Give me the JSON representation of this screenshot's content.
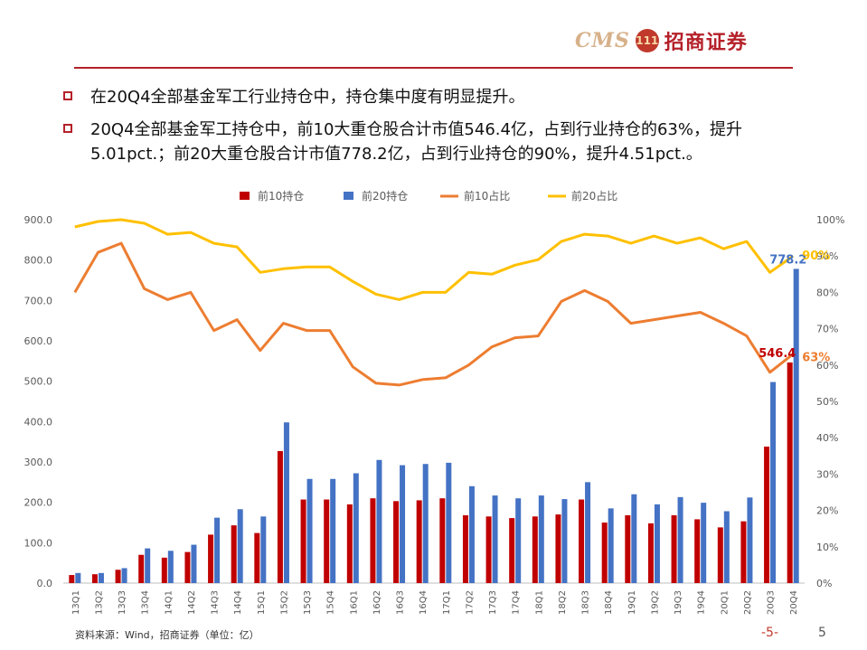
{
  "header": {
    "logo_text": "CMS",
    "logo_emblem": "111",
    "logo_company": "招商证券"
  },
  "bullets": [
    "在20Q4全部基金军工行业持仓中，持仓集中度有明显提升。",
    "20Q4全部基金军工持仓中，前10大重仓股合计市值546.4亿，占到行业持仓的63%，提升5.01pct.；前20大重仓股合计市值778.2亿，占到行业持仓的90%，提升4.51pct.。"
  ],
  "footer": {
    "source": "资料来源：Wind，招商证券（单位：亿）",
    "page_label": "-5-",
    "page_number": "5"
  },
  "colors": {
    "brand": "#b5212a",
    "top10_bar": "#c00000",
    "top20_bar": "#4472c4",
    "top10_line": "#ed7d31",
    "top20_line": "#ffc000"
  },
  "chart_data": {
    "type": "bar",
    "categories": [
      "13Q1",
      "13Q2",
      "13Q3",
      "13Q4",
      "14Q1",
      "14Q2",
      "14Q3",
      "14Q4",
      "15Q1",
      "15Q2",
      "15Q3",
      "15Q4",
      "16Q1",
      "16Q2",
      "16Q3",
      "16Q4",
      "17Q1",
      "17Q2",
      "17Q3",
      "17Q4",
      "18Q1",
      "18Q2",
      "18Q3",
      "18Q4",
      "19Q1",
      "19Q2",
      "19Q3",
      "19Q4",
      "20Q1",
      "20Q2",
      "20Q3",
      "20Q4"
    ],
    "series": [
      {
        "name": "前10持仓",
        "type": "bar",
        "axis": "left",
        "color": "#c00000",
        "values": [
          20,
          22,
          33,
          70,
          63,
          77,
          120,
          143,
          124,
          327,
          207,
          207,
          195,
          210,
          203,
          205,
          210,
          168,
          165,
          161,
          165,
          170,
          207,
          150,
          168,
          148,
          168,
          158,
          138,
          153,
          338,
          546.4
        ]
      },
      {
        "name": "前20持仓",
        "type": "bar",
        "axis": "left",
        "color": "#4472c4",
        "values": [
          25,
          25,
          37,
          86,
          80,
          95,
          162,
          183,
          165,
          398,
          258,
          258,
          272,
          305,
          292,
          295,
          298,
          240,
          217,
          210,
          217,
          208,
          250,
          185,
          220,
          195,
          213,
          199,
          178,
          212,
          498,
          778.2
        ]
      },
      {
        "name": "前10占比",
        "type": "line",
        "axis": "right",
        "color": "#ed7d31",
        "values": [
          80,
          91,
          93.5,
          81,
          78,
          80,
          69.5,
          72.5,
          64,
          71.5,
          69.5,
          69.5,
          59.5,
          55,
          54.5,
          56,
          56.5,
          60,
          65,
          67.5,
          68,
          77.5,
          80.5,
          77.5,
          71.5,
          72.5,
          73.5,
          74.5,
          71.5,
          68,
          58,
          63
        ]
      },
      {
        "name": "前20占比",
        "type": "line",
        "axis": "right",
        "color": "#ffc000",
        "values": [
          98,
          99.5,
          100,
          99,
          96,
          96.5,
          93.5,
          92.5,
          85.5,
          86.5,
          87,
          87,
          83,
          79.5,
          78,
          80,
          80,
          85.5,
          85,
          87.5,
          89,
          94,
          96,
          95.5,
          93.5,
          95.5,
          93.5,
          95,
          92,
          94,
          85.5,
          90
        ]
      }
    ],
    "yleft": {
      "min": 0,
      "max": 900,
      "ticks": [
        "0.0",
        "100.0",
        "200.0",
        "300.0",
        "400.0",
        "500.0",
        "600.0",
        "700.0",
        "800.0",
        "900.0"
      ]
    },
    "yright": {
      "min": 0,
      "max": 100,
      "ticks": [
        "0%",
        "10%",
        "20%",
        "30%",
        "40%",
        "50%",
        "60%",
        "70%",
        "80%",
        "90%",
        "100%"
      ]
    },
    "annotations": [
      {
        "text": "778.2",
        "series": 1,
        "index": 31,
        "color": "#4472c4"
      },
      {
        "text": "546.4",
        "series": 0,
        "index": 31,
        "color": "#c00000"
      },
      {
        "text": "90%",
        "series": 3,
        "index": 31,
        "color": "#ffc000"
      },
      {
        "text": "63%",
        "series": 2,
        "index": 31,
        "color": "#ed7d31"
      }
    ],
    "legend_position": "top",
    "grid": false
  }
}
